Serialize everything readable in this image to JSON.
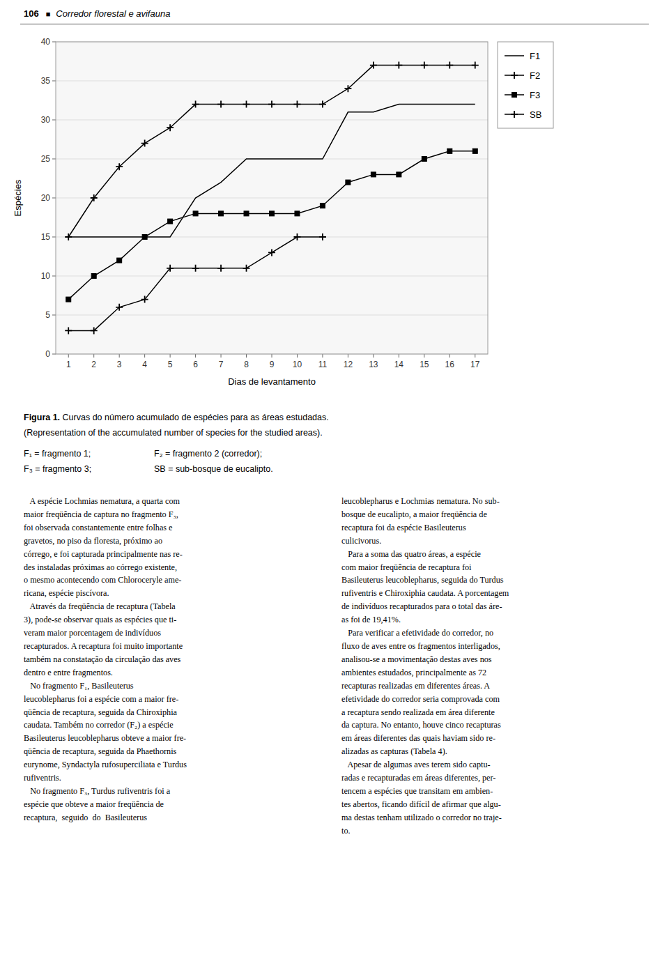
{
  "chart_data": {
    "type": "line",
    "x": [
      1,
      2,
      3,
      4,
      5,
      6,
      7,
      8,
      9,
      10,
      11,
      12,
      13,
      14,
      15,
      16,
      17
    ],
    "series": [
      {
        "name": "F1",
        "color": "#000000",
        "marker": "none",
        "line_style": "solid",
        "values": [
          15,
          15,
          15,
          15,
          15,
          20,
          22,
          25,
          25,
          25,
          25,
          31,
          31,
          32,
          32,
          32,
          32
        ]
      },
      {
        "name": "F2",
        "color": "#000000",
        "marker": "plus",
        "line_style": "solid",
        "values": [
          15,
          20,
          24,
          27,
          29,
          32,
          32,
          32,
          32,
          32,
          32,
          34,
          37,
          37,
          37,
          37,
          37
        ]
      },
      {
        "name": "F3",
        "color": "#000000",
        "marker": "square",
        "line_style": "solid",
        "values": [
          7,
          10,
          12,
          15,
          17,
          18,
          18,
          18,
          18,
          18,
          19,
          22,
          23,
          23,
          25,
          26,
          26
        ]
      },
      {
        "name": "SB",
        "color": "#000000",
        "marker": "plus",
        "line_style": "solid",
        "values": [
          3,
          3,
          6,
          7,
          11,
          11,
          11,
          11,
          13,
          15,
          15,
          null,
          null,
          null,
          null,
          null,
          null
        ]
      }
    ],
    "xlabel": "Dias de levantamento",
    "ylabel": "Espécies",
    "xlim": [
      0.5,
      17.5
    ],
    "ylim": [
      0,
      40
    ],
    "xticks": [
      1,
      2,
      3,
      4,
      5,
      6,
      7,
      8,
      9,
      10,
      11,
      12,
      13,
      14,
      15,
      16,
      17
    ],
    "yticks": [
      0,
      5,
      10,
      15,
      20,
      25,
      30,
      35,
      40
    ],
    "grid": true,
    "legend": "right",
    "annotations": [
      "106",
      "■",
      "Corredor florestal e avifauna",
      "Figura 1.",
      " Curvas do número acumulado de espécies para as áreas estudadas.",
      "(Representation of the accumulated number of species for the studied areas).",
      "F₁ = fragmento 1;",
      "F₂ = fragmento 2 (corredor);",
      "F₃ = fragmento 3;",
      "SB = sub-bosque de eucalipto.",
      "   A espécie Lochmias nematura, a quarta com\nmaior freqüência de captura no fragmento F₃,\nfoi observada constantemente entre folhas e\ngravetos, no piso da floresta, próximo ao\ncórrego, e foi capturada principalmente nas re-\ndes instaladas próximas ao córrego existente,\no mesmo acontecendo com Chloroceryle ame-\nricana, espécie piscívora.\n   Através da freqüência de recaptura (Tabela\n3), pode-se observar quais as espécies que ti-\nveram maior porcentagem de indivíduos\nrecapturados. A recaptura foi muito importante\ntambém na constatação da circulação das aves\ndentro e entre fragmentos.\n   No fragmento F₁, Basileuterus\nleucoblepharus foi a espécie com a maior fre-\nqüência de recaptura, seguida da Chiroxiphia\ncaudata. Também no corredor (F₂) a espécie\nBasileuterus leucoblepharus obteve a maior fre-\nqüência de recaptura, seguida da Phaethornis\neurynome, Syndactyla rufosuperciliata e Turdus\nrufiventris.\n   No fragmento F₃, Turdus rufiventris foi a\nespécie que obteve a maior freqüência de\nrecaptura,  seguido  do  Basileuterus",
      "leucoblepharus e Lochmias nematura. No sub-\nbosque de eucalipto, a maior freqüência de\nrecaptura foi da espécie Basileuterus\nculicivorus.\n   Para a soma das quatro áreas, a espécie\ncom maior freqüência de recaptura foi\nBasileuterus leucoblepharus, seguida do Turdus\nrufiventris e Chiroxiphia caudata. A porcentagem\nde indivíduos recapturados para o total das áre-\nas foi de 19,41%.\n   Para verificar a efetividade do corredor, no\nfluxo de aves entre os fragmentos interligados,\nanalisou-se a movimentação destas aves nos\nambientes estudados, principalmente as 72\nrecapturas realizadas em diferentes áreas. A\nefetividade do corredor seria comprovada com\na recaptura sendo realizada em área diferente\nda captura. No entanto, houve cinco recapturas\nem áreas diferentes das quais haviam sido re-\nalizadas as capturas (Tabela 4).\n   Apesar de algumas aves terem sido captu-\nradas e recapturadas em áreas diferentes, per-\ntencem a espécies que transitam em ambien-\ntes abertos, ficando difícil de afirmar que algu-\nma destas tenham utilizado o corredor no traje-\nto."
    ]
  }
}
